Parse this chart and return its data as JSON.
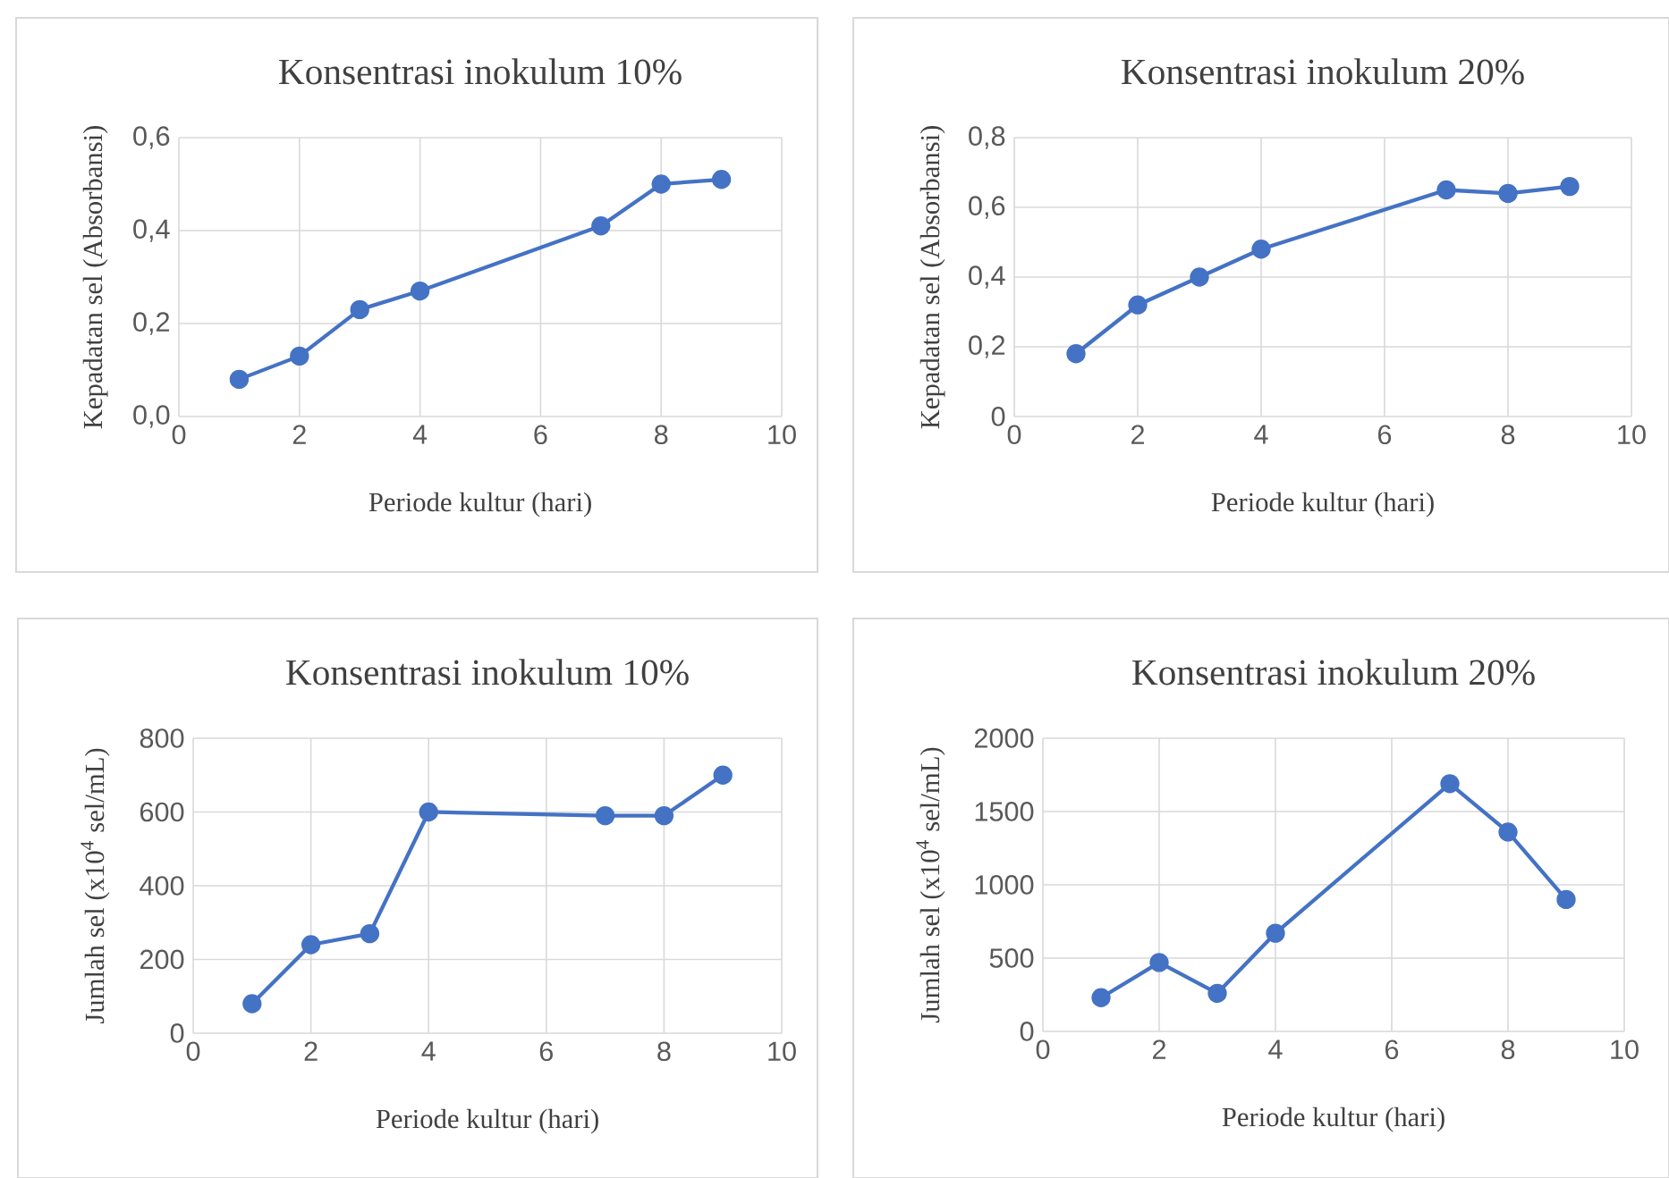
{
  "chart_data": [
    {
      "type": "line",
      "title": "Konsentrasi inokulum 10%",
      "xlabel": "Periode kultur (hari)",
      "ylabel": "Kepadatan sel (Absorbansi)",
      "x": [
        1,
        2,
        3,
        4,
        7,
        8,
        9
      ],
      "series": [
        {
          "color": "#4472c4",
          "values": [
            0.08,
            0.13,
            0.23,
            0.27,
            0.41,
            0.5,
            0.51
          ]
        }
      ],
      "xlim": [
        0,
        10
      ],
      "xticks": [
        0,
        2,
        4,
        6,
        8,
        10
      ],
      "ylim": [
        0,
        0.6
      ],
      "yticks": [
        {
          "value": 0,
          "label": "0,0"
        },
        {
          "value": 0.2,
          "label": "0,2"
        },
        {
          "value": 0.4,
          "label": "0,4"
        },
        {
          "value": 0.6,
          "label": "0,6"
        }
      ],
      "grid": true,
      "marker": "circle",
      "line_style": "solid"
    },
    {
      "type": "line",
      "title": "Konsentrasi inokulum 20%",
      "xlabel": "Periode kultur (hari)",
      "ylabel": "Kepadatan sel (Absorbansi)",
      "x": [
        1,
        2,
        3,
        4,
        7,
        8,
        9
      ],
      "series": [
        {
          "color": "#4472c4",
          "values": [
            0.18,
            0.32,
            0.4,
            0.48,
            0.65,
            0.64,
            0.66
          ]
        }
      ],
      "xlim": [
        0,
        10
      ],
      "xticks": [
        0,
        2,
        4,
        6,
        8,
        10
      ],
      "ylim": [
        0,
        0.8
      ],
      "yticks": [
        0,
        {
          "value": 0.2,
          "label": "0,2"
        },
        {
          "value": 0.4,
          "label": "0,4"
        },
        {
          "value": 0.6,
          "label": "0,6"
        },
        {
          "value": 0.8,
          "label": "0,8"
        }
      ],
      "grid": true,
      "marker": "circle",
      "line_style": "solid"
    },
    {
      "type": "line",
      "title": "Konsentrasi inokulum 10%",
      "xlabel": "Periode kultur (hari)",
      "ylabel": "Jumlah sel (x10$^{4}$ sel/mL)",
      "x": [
        1,
        2,
        3,
        4,
        7,
        8,
        9
      ],
      "series": [
        {
          "color": "#4472c4",
          "values": [
            80,
            240,
            270,
            600,
            590,
            590,
            700
          ]
        }
      ],
      "xlim": [
        0,
        10
      ],
      "xticks": [
        0,
        2,
        4,
        6,
        8,
        10
      ],
      "ylim": [
        0,
        800
      ],
      "yticks": [
        0,
        200,
        400,
        600,
        800
      ],
      "grid": true,
      "marker": "circle",
      "line_style": "solid"
    },
    {
      "type": "line",
      "title": "Konsentrasi inokulum 20%",
      "xlabel": "Periode kultur (hari)",
      "ylabel": "Jumlah sel (x10$^{4}$ sel/mL)",
      "x": [
        1,
        2,
        3,
        4,
        7,
        8,
        9
      ],
      "series": [
        {
          "color": "#4472c4",
          "values": [
            230,
            470,
            260,
            670,
            1690,
            1360,
            900
          ]
        }
      ],
      "xlim": [
        0,
        10
      ],
      "xticks": [
        0,
        2,
        4,
        6,
        8,
        10
      ],
      "ylim": [
        0,
        2000
      ],
      "yticks": [
        0,
        500,
        1000,
        1500,
        2000
      ],
      "grid": true,
      "marker": "circle",
      "line_style": "solid"
    }
  ]
}
